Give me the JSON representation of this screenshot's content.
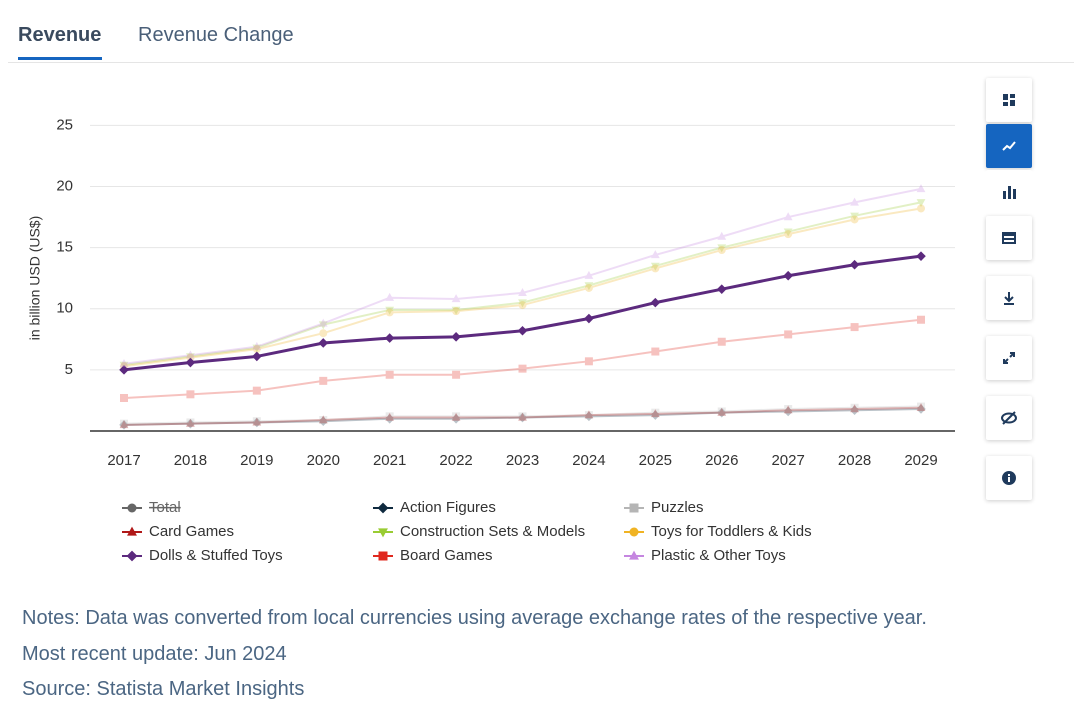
{
  "tabs": [
    "Revenue",
    "Revenue Change"
  ],
  "chart_data": {
    "type": "line",
    "y_label": "in billion USD (US$)",
    "categories": [
      "2017",
      "2018",
      "2019",
      "2020",
      "2021",
      "2022",
      "2023",
      "2024",
      "2025",
      "2026",
      "2027",
      "2028",
      "2029"
    ],
    "ylim": [
      0,
      26.5
    ],
    "yticks": [
      5,
      10,
      15,
      20,
      25
    ],
    "grid": true,
    "series": [
      {
        "name": "Total",
        "color": "#666666",
        "marker": "circle",
        "hidden": true,
        "highlighted": false,
        "values": [
          null,
          null,
          null,
          null,
          null,
          null,
          null,
          null,
          null,
          null,
          null,
          null,
          null
        ]
      },
      {
        "name": "Action Figures",
        "color": "#0f2a3f",
        "marker": "diamond",
        "hidden": false,
        "highlighted": false,
        "values": [
          0.5,
          0.6,
          0.7,
          0.8,
          1.0,
          1.0,
          1.1,
          1.2,
          1.3,
          1.5,
          1.6,
          1.7,
          1.8
        ]
      },
      {
        "name": "Puzzles",
        "color": "#b5b5b5",
        "marker": "square",
        "hidden": false,
        "highlighted": false,
        "values": [
          0.6,
          0.7,
          0.8,
          0.9,
          1.2,
          1.2,
          1.2,
          1.3,
          1.5,
          1.6,
          1.8,
          1.9,
          2.0
        ]
      },
      {
        "name": "Card Games",
        "color": "#b01818",
        "marker": "triangle",
        "hidden": false,
        "highlighted": false,
        "values": [
          0.5,
          0.6,
          0.7,
          0.9,
          1.1,
          1.1,
          1.1,
          1.3,
          1.4,
          1.5,
          1.7,
          1.8,
          1.9
        ]
      },
      {
        "name": "Construction Sets & Models",
        "color": "#99cc33",
        "marker": "triangle-down",
        "hidden": false,
        "highlighted": false,
        "values": [
          5.4,
          6.1,
          6.8,
          8.7,
          9.9,
          9.9,
          10.5,
          11.9,
          13.5,
          15.0,
          16.3,
          17.6,
          18.7
        ]
      },
      {
        "name": "Toys for Toddlers & Kids",
        "color": "#f0b323",
        "marker": "circle",
        "hidden": false,
        "highlighted": false,
        "values": [
          5.3,
          6.0,
          6.7,
          8.0,
          9.7,
          9.8,
          10.3,
          11.7,
          13.3,
          14.8,
          16.1,
          17.3,
          18.2
        ]
      },
      {
        "name": "Dolls & Stuffed Toys",
        "color": "#5c2a7e",
        "marker": "diamond",
        "hidden": false,
        "highlighted": true,
        "values": [
          5.0,
          5.6,
          6.1,
          7.2,
          7.6,
          7.7,
          8.2,
          9.2,
          10.5,
          11.6,
          12.7,
          13.6,
          14.3
        ]
      },
      {
        "name": "Board Games",
        "color": "#e0281e",
        "marker": "square",
        "hidden": false,
        "highlighted": false,
        "values": [
          2.7,
          3.0,
          3.3,
          4.1,
          4.6,
          4.6,
          5.1,
          5.7,
          6.5,
          7.3,
          7.9,
          8.5,
          9.1
        ]
      },
      {
        "name": "Plastic & Other Toys",
        "color": "#c586e0",
        "marker": "triangle",
        "hidden": false,
        "highlighted": false,
        "values": [
          5.5,
          6.2,
          6.9,
          8.8,
          10.9,
          10.8,
          11.3,
          12.7,
          14.4,
          15.9,
          17.5,
          18.7,
          19.8
        ]
      }
    ]
  },
  "notes": [
    "Notes: Data was converted from local currencies using average exchange rates of the respective year.",
    "Most recent update: Jun 2024",
    "Source: Statista Market Insights"
  ]
}
